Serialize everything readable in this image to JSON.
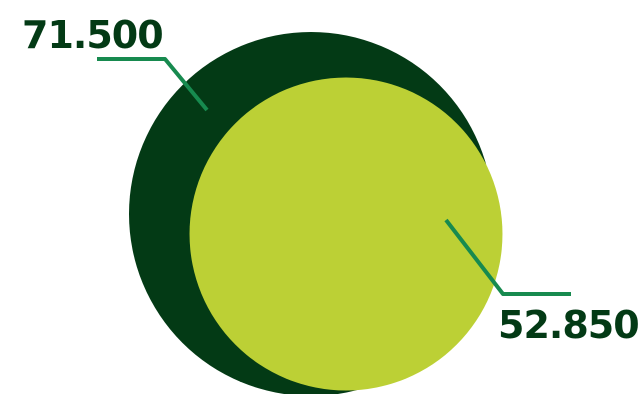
{
  "chart_data": {
    "type": "nested-circles",
    "title": "",
    "series": [
      {
        "value": 71.5,
        "label": "71.500",
        "color": "#033a15"
      },
      {
        "value": 52.85,
        "label": "52.850",
        "color": "#bcd035"
      }
    ],
    "leader_color": "#178a4f",
    "label_color": "#033a15"
  }
}
